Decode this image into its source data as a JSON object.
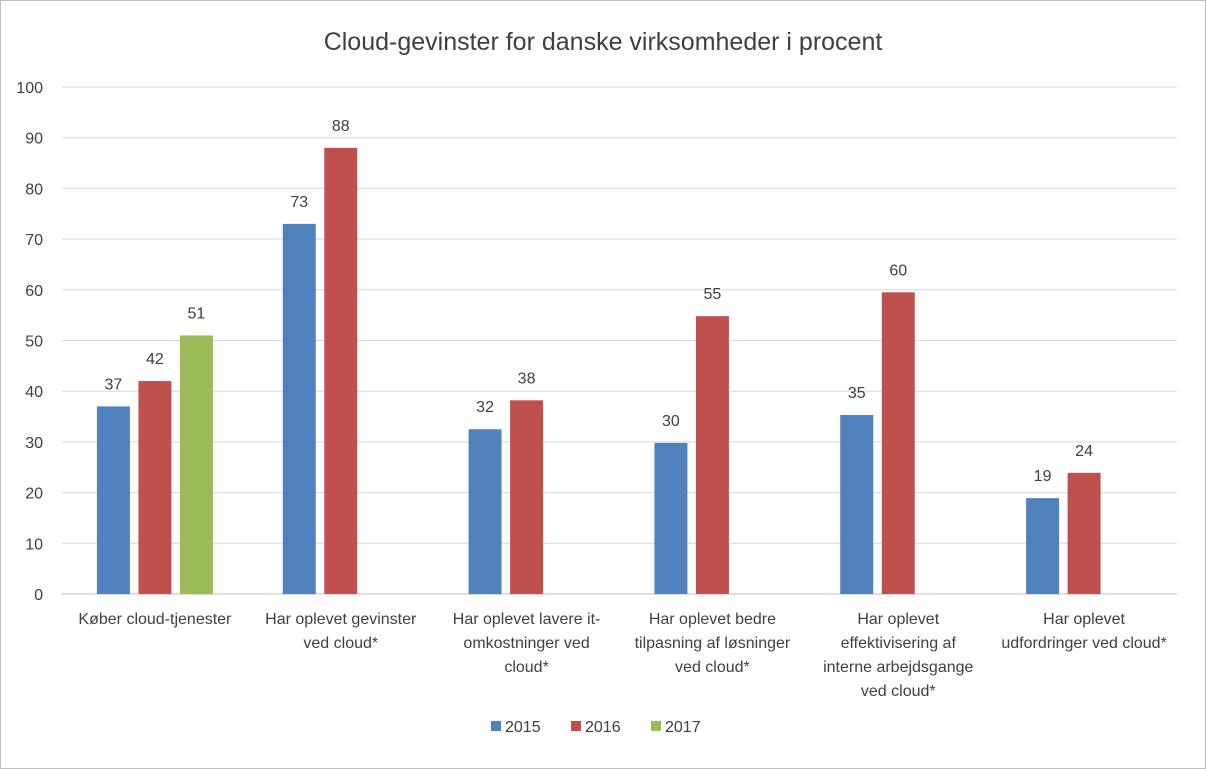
{
  "chart_data": {
    "type": "bar",
    "title": "Cloud-gevinster for danske virksomheder  i procent",
    "xlabel": "",
    "ylabel": "",
    "ylim": [
      0,
      100
    ],
    "yticks": [
      "0",
      "10",
      "20",
      "30",
      "40",
      "50",
      "60",
      "70",
      "80",
      "90",
      "100"
    ],
    "grid": true,
    "legend_position": "bottom",
    "categories": [
      [
        "Køber cloud-tjenester"
      ],
      [
        "Har oplevet gevinster",
        "ved cloud*"
      ],
      [
        "Har oplevet lavere it-",
        "omkostninger ved",
        "cloud*"
      ],
      [
        "Har oplevet bedre",
        "tilpasning af løsninger",
        "ved cloud*"
      ],
      [
        "Har oplevet",
        "effektivisering af",
        "interne arbejdsgange",
        "ved cloud*"
      ],
      [
        "Har oplevet",
        "udfordringer ved cloud*"
      ]
    ],
    "series": [
      {
        "name": "2015",
        "color": "#4f81bd",
        "values": [
          37,
          73,
          32.5,
          29.8,
          35.3,
          18.9
        ],
        "labels": [
          "37",
          "73",
          "32",
          "30",
          "35",
          "19"
        ]
      },
      {
        "name": "2016",
        "color": "#c0504d",
        "values": [
          42,
          88,
          38.2,
          54.8,
          59.5,
          23.9
        ],
        "labels": [
          "42",
          "88",
          "38",
          "55",
          "60",
          "24"
        ]
      },
      {
        "name": "2017",
        "color": "#9bbb59",
        "values": [
          51,
          null,
          null,
          null,
          null,
          null
        ],
        "labels": [
          "51",
          "",
          "",
          "",
          "",
          ""
        ]
      }
    ]
  }
}
